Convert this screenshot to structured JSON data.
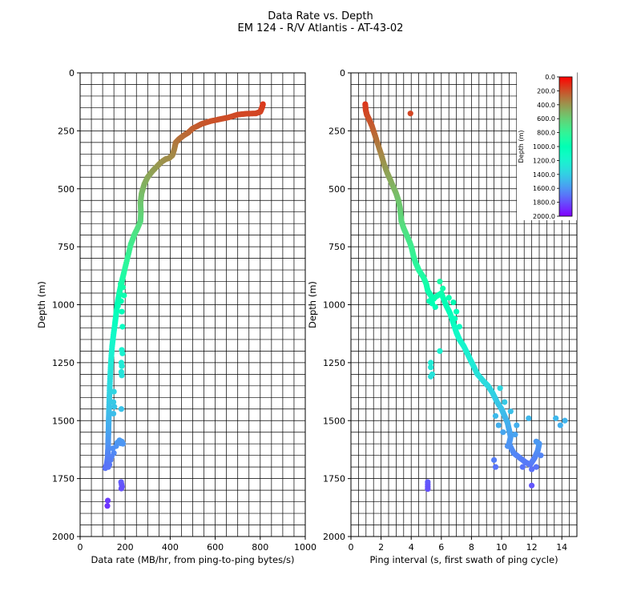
{
  "figure": {
    "title_line1": "Data Rate vs. Depth",
    "title_line2": "EM 124 - R/V Atlantis - AT-43-02"
  },
  "chart_data": [
    {
      "type": "scatter",
      "xlabel": "Data rate (MB/hr, from ping-to-ping bytes/s)",
      "ylabel": "Depth (m)",
      "xlim": [
        0,
        1000
      ],
      "ylim": [
        2000,
        0
      ],
      "xticks": [
        0,
        200,
        400,
        600,
        800,
        1000
      ],
      "yticks": [
        0,
        250,
        500,
        750,
        1000,
        1250,
        1500,
        1750,
        2000
      ],
      "grid": true,
      "color_by": "depth",
      "trend": [
        [
          812,
          135
        ],
        [
          808,
          150
        ],
        [
          800,
          168
        ],
        [
          780,
          175
        ],
        [
          740,
          176
        ],
        [
          700,
          180
        ],
        [
          660,
          192
        ],
        [
          620,
          200
        ],
        [
          580,
          208
        ],
        [
          540,
          220
        ],
        [
          500,
          240
        ],
        [
          480,
          258
        ],
        [
          460,
          270
        ],
        [
          440,
          285
        ],
        [
          425,
          300
        ],
        [
          418,
          330
        ],
        [
          410,
          355
        ],
        [
          395,
          368
        ],
        [
          380,
          372
        ],
        [
          360,
          385
        ],
        [
          340,
          405
        ],
        [
          320,
          425
        ],
        [
          300,
          450
        ],
        [
          285,
          480
        ],
        [
          273,
          520
        ],
        [
          268,
          560
        ],
        [
          270,
          600
        ],
        [
          268,
          640
        ],
        [
          255,
          670
        ],
        [
          240,
          700
        ],
        [
          225,
          740
        ],
        [
          210,
          800
        ],
        [
          195,
          860
        ],
        [
          185,
          900
        ],
        [
          178,
          930
        ],
        [
          170,
          970
        ],
        [
          165,
          1000
        ],
        [
          160,
          1040
        ],
        [
          155,
          1080
        ],
        [
          148,
          1130
        ],
        [
          142,
          1180
        ],
        [
          138,
          1230
        ],
        [
          135,
          1280
        ],
        [
          132,
          1340
        ],
        [
          130,
          1400
        ],
        [
          128,
          1460
        ],
        [
          127,
          1500
        ],
        [
          126,
          1540
        ],
        [
          125,
          1580
        ],
        [
          124,
          1620
        ],
        [
          122,
          1660
        ],
        [
          118,
          1690
        ],
        [
          112,
          1705
        ]
      ],
      "extra_points": [
        [
          180,
          910
        ],
        [
          190,
          925
        ],
        [
          175,
          945
        ],
        [
          195,
          960
        ],
        [
          182,
          985
        ],
        [
          168,
          1005
        ],
        [
          185,
          1030
        ],
        [
          188,
          1095
        ],
        [
          185,
          1195
        ],
        [
          188,
          1210
        ],
        [
          183,
          1250
        ],
        [
          185,
          1265
        ],
        [
          183,
          1290
        ],
        [
          185,
          1305
        ],
        [
          150,
          1375
        ],
        [
          148,
          1420
        ],
        [
          152,
          1440
        ],
        [
          148,
          1470
        ],
        [
          183,
          1450
        ],
        [
          175,
          1585
        ],
        [
          185,
          1590
        ],
        [
          165,
          1595
        ],
        [
          180,
          1598
        ],
        [
          190,
          1600
        ],
        [
          160,
          1610
        ],
        [
          145,
          1620
        ],
        [
          150,
          1640
        ],
        [
          140,
          1655
        ],
        [
          135,
          1670
        ],
        [
          130,
          1690
        ],
        [
          125,
          1700
        ],
        [
          182,
          1765
        ],
        [
          184,
          1775
        ],
        [
          186,
          1785
        ],
        [
          183,
          1793
        ],
        [
          123,
          1845
        ],
        [
          121,
          1868
        ]
      ]
    },
    {
      "type": "scatter",
      "xlabel": "Ping interval (s, first swath of ping cycle)",
      "ylabel": "Depth (m)",
      "xlim": [
        0,
        15
      ],
      "ylim": [
        2000,
        0
      ],
      "xticks": [
        0,
        2,
        4,
        6,
        8,
        10,
        12,
        14
      ],
      "yticks": [
        0,
        250,
        500,
        750,
        1000,
        1250,
        1500,
        1750,
        2000
      ],
      "grid": true,
      "color_by": "depth",
      "trend": [
        [
          0.95,
          135
        ],
        [
          0.98,
          160
        ],
        [
          1.05,
          180
        ],
        [
          1.2,
          200
        ],
        [
          1.4,
          230
        ],
        [
          1.6,
          270
        ],
        [
          1.8,
          310
        ],
        [
          2.0,
          350
        ],
        [
          2.2,
          395
        ],
        [
          2.4,
          430
        ],
        [
          2.6,
          460
        ],
        [
          2.8,
          490
        ],
        [
          3.0,
          520
        ],
        [
          3.15,
          550
        ],
        [
          3.25,
          580
        ],
        [
          3.3,
          610
        ],
        [
          3.35,
          640
        ],
        [
          3.5,
          670
        ],
        [
          3.7,
          700
        ],
        [
          3.9,
          730
        ],
        [
          4.05,
          760
        ],
        [
          4.15,
          790
        ],
        [
          4.3,
          820
        ],
        [
          4.5,
          850
        ],
        [
          4.8,
          880
        ],
        [
          5.0,
          910
        ],
        [
          5.1,
          940
        ],
        [
          5.3,
          960
        ],
        [
          5.5,
          975
        ],
        [
          5.2,
          985
        ],
        [
          6.0,
          950
        ],
        [
          6.3,
          1000
        ],
        [
          6.6,
          1040
        ],
        [
          6.8,
          1080
        ],
        [
          7.0,
          1120
        ],
        [
          7.2,
          1150
        ],
        [
          7.5,
          1180
        ],
        [
          7.8,
          1220
        ],
        [
          8.1,
          1260
        ],
        [
          8.4,
          1300
        ],
        [
          8.8,
          1330
        ],
        [
          9.1,
          1350
        ],
        [
          9.4,
          1380
        ],
        [
          9.7,
          1420
        ],
        [
          10.0,
          1450
        ],
        [
          10.2,
          1480
        ],
        [
          10.4,
          1510
        ],
        [
          10.5,
          1540
        ],
        [
          10.6,
          1570
        ],
        [
          10.5,
          1600
        ],
        [
          10.8,
          1640
        ],
        [
          11.2,
          1660
        ],
        [
          11.6,
          1680
        ],
        [
          11.9,
          1690
        ],
        [
          12.2,
          1660
        ],
        [
          12.4,
          1630
        ],
        [
          12.5,
          1600
        ],
        [
          12.3,
          1590
        ]
      ],
      "extra_points": [
        [
          3.95,
          175
        ],
        [
          5.9,
          900
        ],
        [
          6.1,
          930
        ],
        [
          6.5,
          970
        ],
        [
          6.8,
          990
        ],
        [
          5.4,
          995
        ],
        [
          5.6,
          1010
        ],
        [
          7.0,
          1030
        ],
        [
          6.9,
          1060
        ],
        [
          7.2,
          1095
        ],
        [
          5.3,
          1250
        ],
        [
          5.3,
          1270
        ],
        [
          5.4,
          1300
        ],
        [
          5.3,
          1310
        ],
        [
          5.9,
          1200
        ],
        [
          9.9,
          1360
        ],
        [
          10.2,
          1420
        ],
        [
          10.6,
          1460
        ],
        [
          9.6,
          1480
        ],
        [
          11.8,
          1490
        ],
        [
          9.8,
          1520
        ],
        [
          10.1,
          1550
        ],
        [
          10.9,
          1560
        ],
        [
          11.0,
          1520
        ],
        [
          10.4,
          1610
        ],
        [
          9.5,
          1670
        ],
        [
          9.6,
          1700
        ],
        [
          12.0,
          1710
        ],
        [
          11.4,
          1700
        ],
        [
          12.0,
          1780
        ],
        [
          13.6,
          1490
        ],
        [
          14.2,
          1500
        ],
        [
          13.9,
          1520
        ],
        [
          12.6,
          1650
        ],
        [
          12.3,
          1700
        ],
        [
          5.1,
          1765
        ],
        [
          5.1,
          1775
        ],
        [
          5.1,
          1785
        ],
        [
          5.1,
          1795
        ]
      ]
    }
  ],
  "colorbar": {
    "label": "Depth (m)",
    "ticks": [
      "0.0",
      "200.0",
      "400.0",
      "600.0",
      "800.0",
      "1000.0",
      "1200.0",
      "1400.0",
      "1600.0",
      "1800.0",
      "2000.0"
    ],
    "range": [
      0,
      2000
    ],
    "colormap": "rainbow_r"
  }
}
